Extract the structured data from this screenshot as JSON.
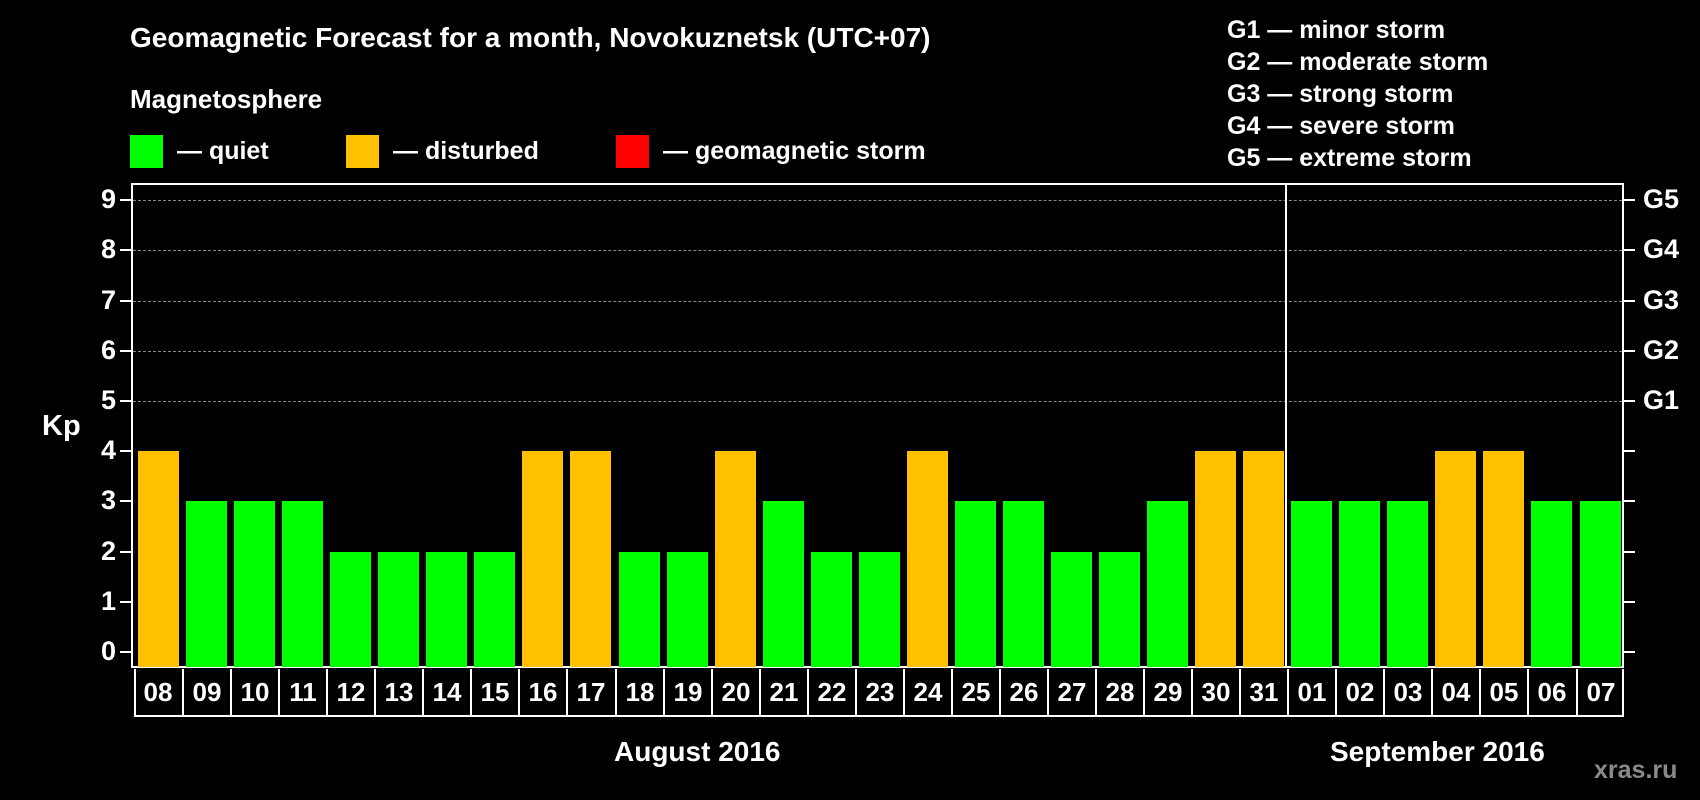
{
  "title": "Geomagnetic Forecast for a month, Novokuznetsk (UTC+07)",
  "magnetosphere_title": "Magnetosphere",
  "legend": [
    {
      "label": "— quiet",
      "color": "#00ff00"
    },
    {
      "label": "— disturbed",
      "color": "#ffc000"
    },
    {
      "label": "— geomagnetic storm",
      "color": "#ff0000"
    }
  ],
  "g_scale": [
    "G1 — minor storm",
    "G2 — moderate storm",
    "G3 — strong storm",
    "G4 — severe storm",
    "G5 — extreme storm"
  ],
  "axis": {
    "ylabel": "Kp",
    "y_ticks": [
      "0",
      "1",
      "2",
      "3",
      "4",
      "5",
      "6",
      "7",
      "8",
      "9"
    ],
    "right_ticks": [
      {
        "value": 5,
        "label": "G1"
      },
      {
        "value": 6,
        "label": "G2"
      },
      {
        "value": 7,
        "label": "G3"
      },
      {
        "value": 8,
        "label": "G4"
      },
      {
        "value": 9,
        "label": "G5"
      }
    ]
  },
  "months": {
    "august": "August 2016",
    "september": "September 2016"
  },
  "watermark": "xras.ru",
  "chart_data": {
    "type": "bar",
    "title": "Geomagnetic Forecast for a month, Novokuznetsk (UTC+07)",
    "xlabel": "",
    "ylabel": "Kp",
    "ylim": [
      0,
      9
    ],
    "grid": "dashed horizontal at Kp 5-9",
    "categories": [
      "08",
      "09",
      "10",
      "11",
      "12",
      "13",
      "14",
      "15",
      "16",
      "17",
      "18",
      "19",
      "20",
      "21",
      "22",
      "23",
      "24",
      "25",
      "26",
      "27",
      "28",
      "29",
      "30",
      "31",
      "01",
      "02",
      "03",
      "04",
      "05",
      "06",
      "07"
    ],
    "values": [
      4,
      3,
      3,
      3,
      2,
      2,
      2,
      2,
      4,
      4,
      2,
      2,
      4,
      3,
      2,
      2,
      4,
      3,
      3,
      2,
      2,
      3,
      4,
      4,
      3,
      3,
      3,
      4,
      4,
      3,
      3
    ],
    "status": [
      "disturbed",
      "quiet",
      "quiet",
      "quiet",
      "quiet",
      "quiet",
      "quiet",
      "quiet",
      "disturbed",
      "disturbed",
      "quiet",
      "quiet",
      "disturbed",
      "quiet",
      "quiet",
      "quiet",
      "disturbed",
      "quiet",
      "quiet",
      "quiet",
      "quiet",
      "quiet",
      "disturbed",
      "disturbed",
      "quiet",
      "quiet",
      "quiet",
      "disturbed",
      "disturbed",
      "quiet",
      "quiet"
    ],
    "month_groups": [
      {
        "label": "August 2016",
        "from": "08",
        "to": "31"
      },
      {
        "label": "September 2016",
        "from": "01",
        "to": "07"
      }
    ],
    "legend": [
      "quiet",
      "disturbed",
      "geomagnetic storm"
    ],
    "right_axis": [
      "G1",
      "G2",
      "G3",
      "G4",
      "G5"
    ]
  }
}
